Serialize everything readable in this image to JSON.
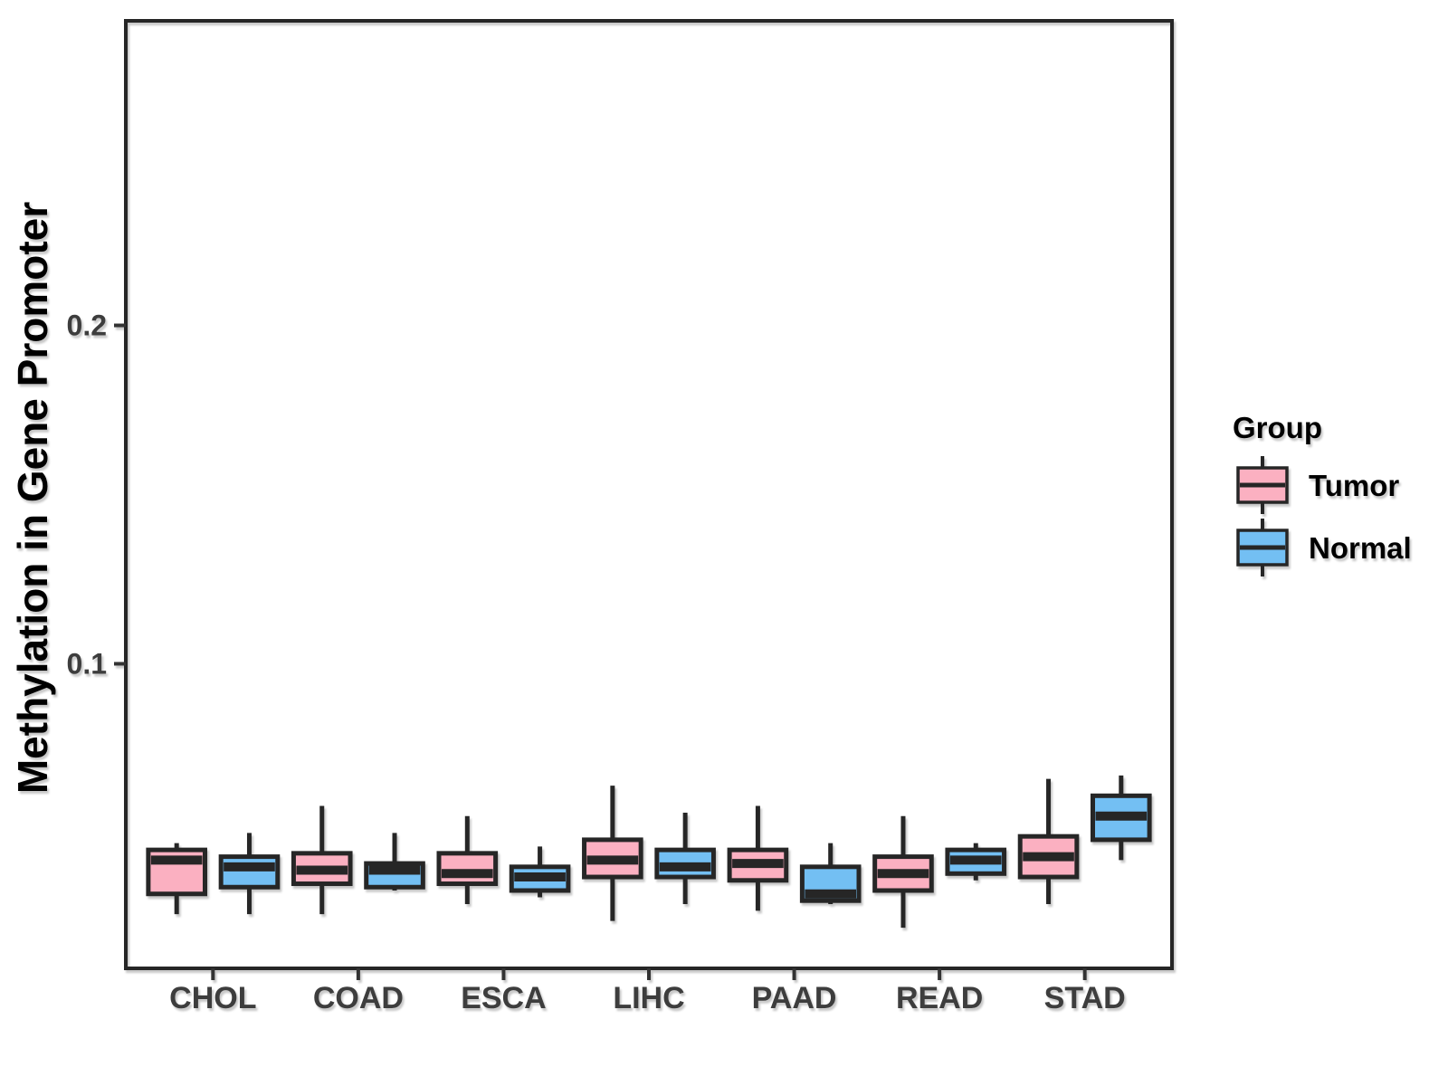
{
  "figure": {
    "background": "#FFFFFF"
  },
  "legend": {
    "title": "Group",
    "entries": [
      {
        "label": "Tumor",
        "color": "#FBB0C1"
      },
      {
        "label": "Normal",
        "color": "#73BFF3"
      }
    ]
  },
  "chart_data": {
    "type": "boxplot",
    "title": "",
    "xlabel": "",
    "ylabel": "Methylation in Gene Promoter",
    "categories": [
      "CHOL",
      "COAD",
      "ESCA",
      "LIHC",
      "PAAD",
      "READ",
      "STAD"
    ],
    "groups": [
      "Tumor",
      "Normal"
    ],
    "y_ticks": [
      0.1,
      0.2
    ],
    "y_tick_labels": [
      "0.1",
      "0.2"
    ],
    "ylim": [
      0.01,
      0.29
    ],
    "grid": false,
    "legend_position": "right",
    "colors": {
      "Tumor": "#FBB0C1",
      "Normal": "#73BFF3",
      "stroke": "#262626",
      "axis_text": "#3D3D3D"
    },
    "stat_order": [
      "whisker_low",
      "q1",
      "median",
      "q3",
      "whisker_high"
    ],
    "series": [
      {
        "name": "Tumor",
        "stats": [
          [
            0.026,
            0.032,
            0.042,
            0.045,
            0.047
          ],
          [
            0.026,
            0.035,
            0.039,
            0.044,
            0.058
          ],
          [
            0.029,
            0.035,
            0.038,
            0.044,
            0.055
          ],
          [
            0.024,
            0.037,
            0.042,
            0.048,
            0.064
          ],
          [
            0.027,
            0.036,
            0.041,
            0.045,
            0.058
          ],
          [
            0.022,
            0.033,
            0.038,
            0.043,
            0.055
          ],
          [
            0.029,
            0.037,
            0.043,
            0.049,
            0.066
          ]
        ]
      },
      {
        "name": "Normal",
        "stats": [
          [
            0.026,
            0.034,
            0.04,
            0.043,
            0.05
          ],
          [
            0.033,
            0.034,
            0.039,
            0.041,
            0.05
          ],
          [
            0.031,
            0.033,
            0.037,
            0.04,
            0.046
          ],
          [
            0.029,
            0.037,
            0.04,
            0.045,
            0.056
          ],
          [
            0.029,
            0.03,
            0.032,
            0.04,
            0.047
          ],
          [
            0.036,
            0.038,
            0.042,
            0.045,
            0.047
          ],
          [
            0.042,
            0.048,
            0.055,
            0.061,
            0.067
          ]
        ]
      }
    ]
  }
}
